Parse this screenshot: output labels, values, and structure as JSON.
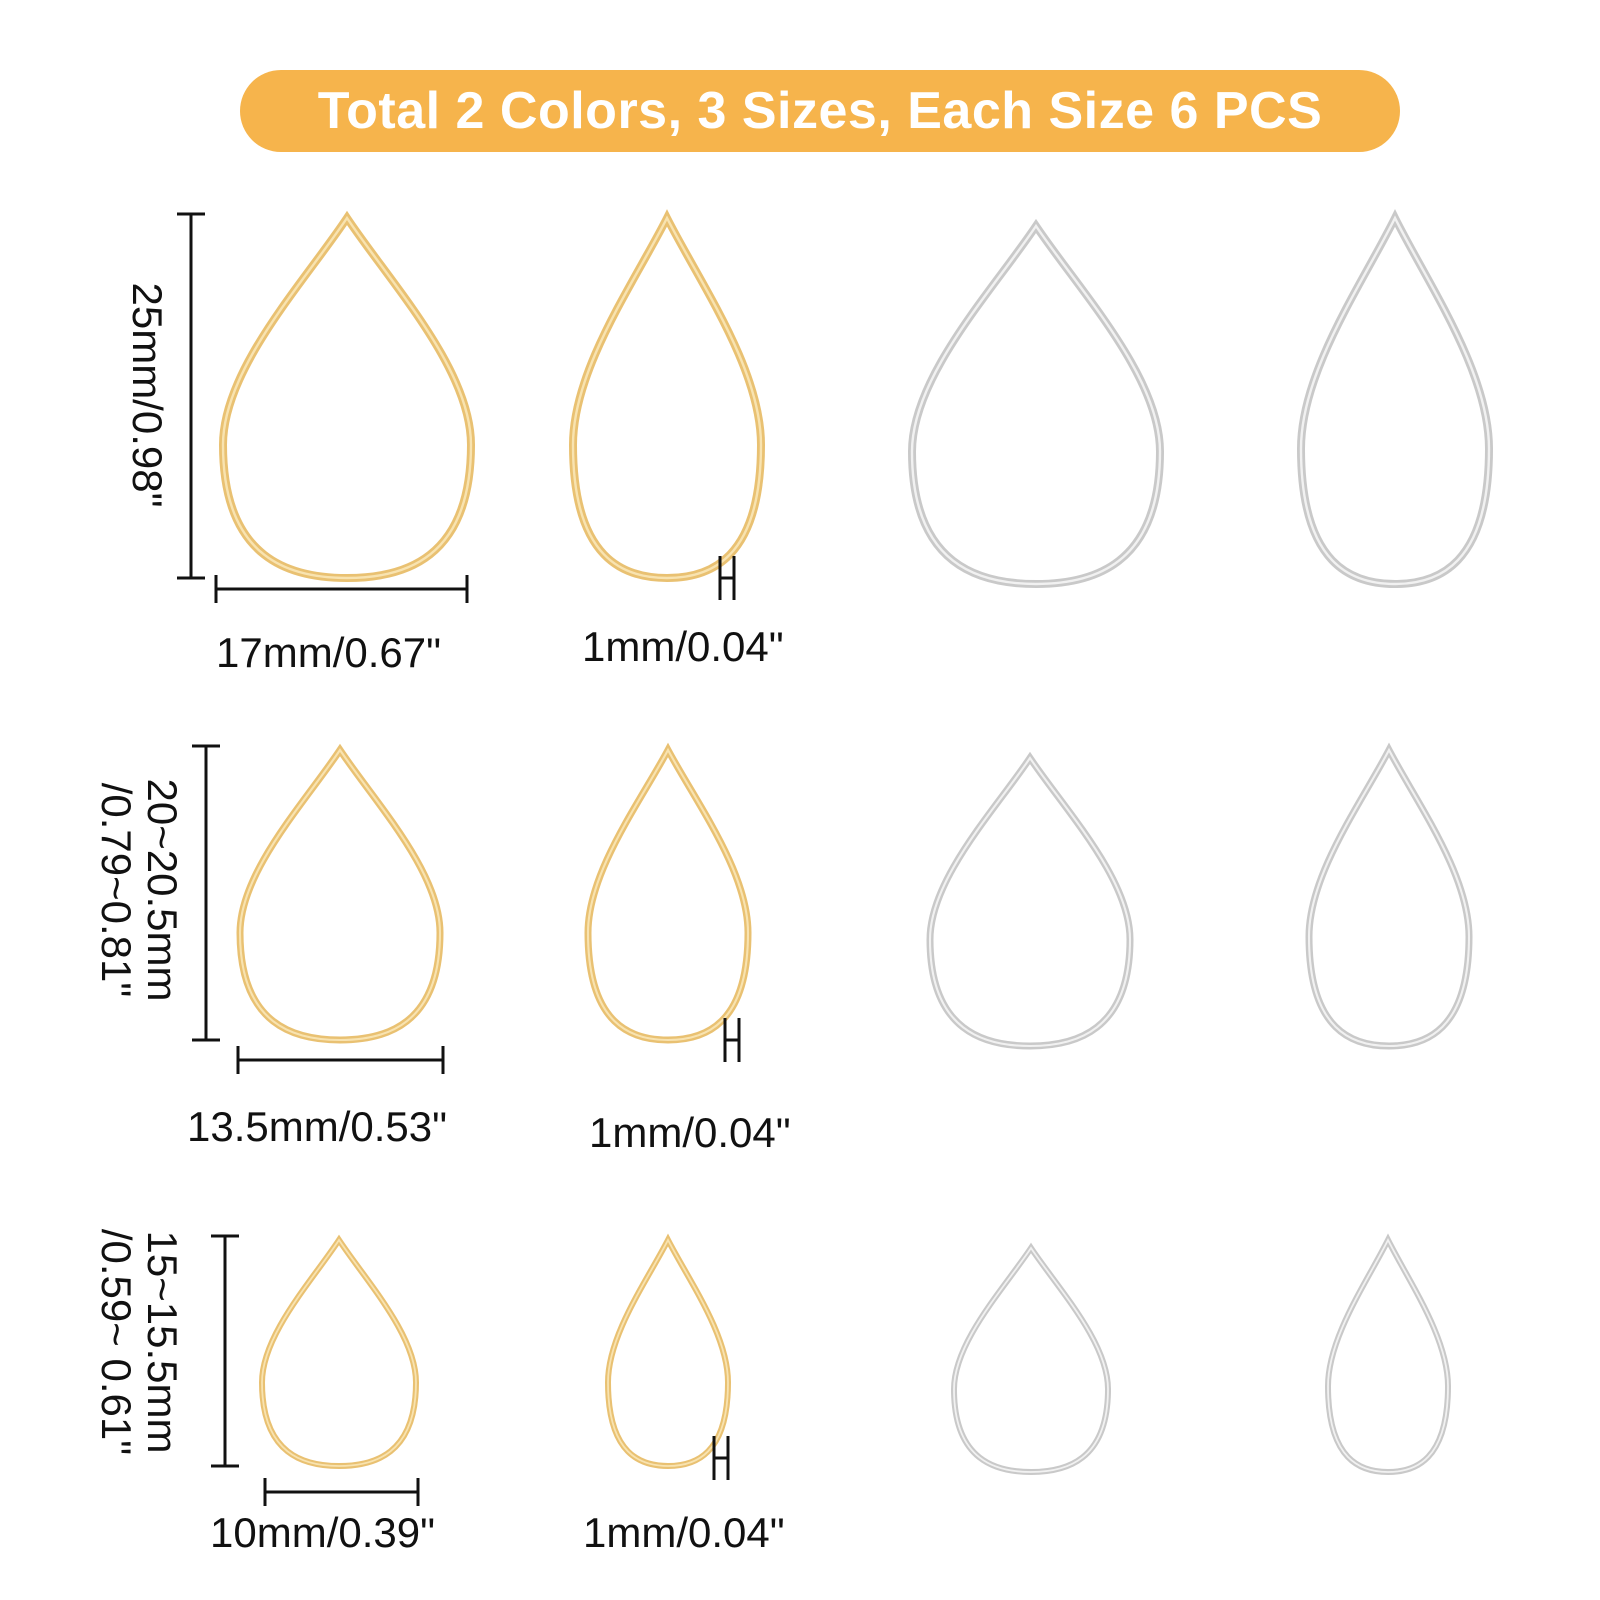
{
  "banner": {
    "text": "Total 2 Colors, 3 Sizes, Each Size 6 PCS",
    "color": "#f6b44c"
  },
  "colors": {
    "gold": "#e9c172",
    "gold_highlight": "#f8e3b0",
    "silver": "#c9c9c9",
    "silver_highlight": "#f1f1f1",
    "dimension_line": "#111111"
  },
  "rows": [
    {
      "size": "large",
      "height_label": "25mm/0.98\"",
      "height_label_line2": "",
      "width_label": "17mm/0.67\"",
      "thickness_label": "1mm/0.04\""
    },
    {
      "size": "medium",
      "height_label": "20~20.5mm",
      "height_label_line2": "/0.79~0.81\"",
      "width_label": "13.5mm/0.53\"",
      "thickness_label": "1mm/0.04\""
    },
    {
      "size": "small",
      "height_label": "15~15.5mm",
      "height_label_line2": "/0.59~ 0.61\"",
      "width_label": "10mm/0.39\"",
      "thickness_label": "1mm/0.04\""
    }
  ],
  "items": [
    {
      "finish": "gold",
      "view": "front"
    },
    {
      "finish": "gold",
      "view": "angled"
    },
    {
      "finish": "silver",
      "view": "front"
    },
    {
      "finish": "silver",
      "view": "angled"
    }
  ]
}
